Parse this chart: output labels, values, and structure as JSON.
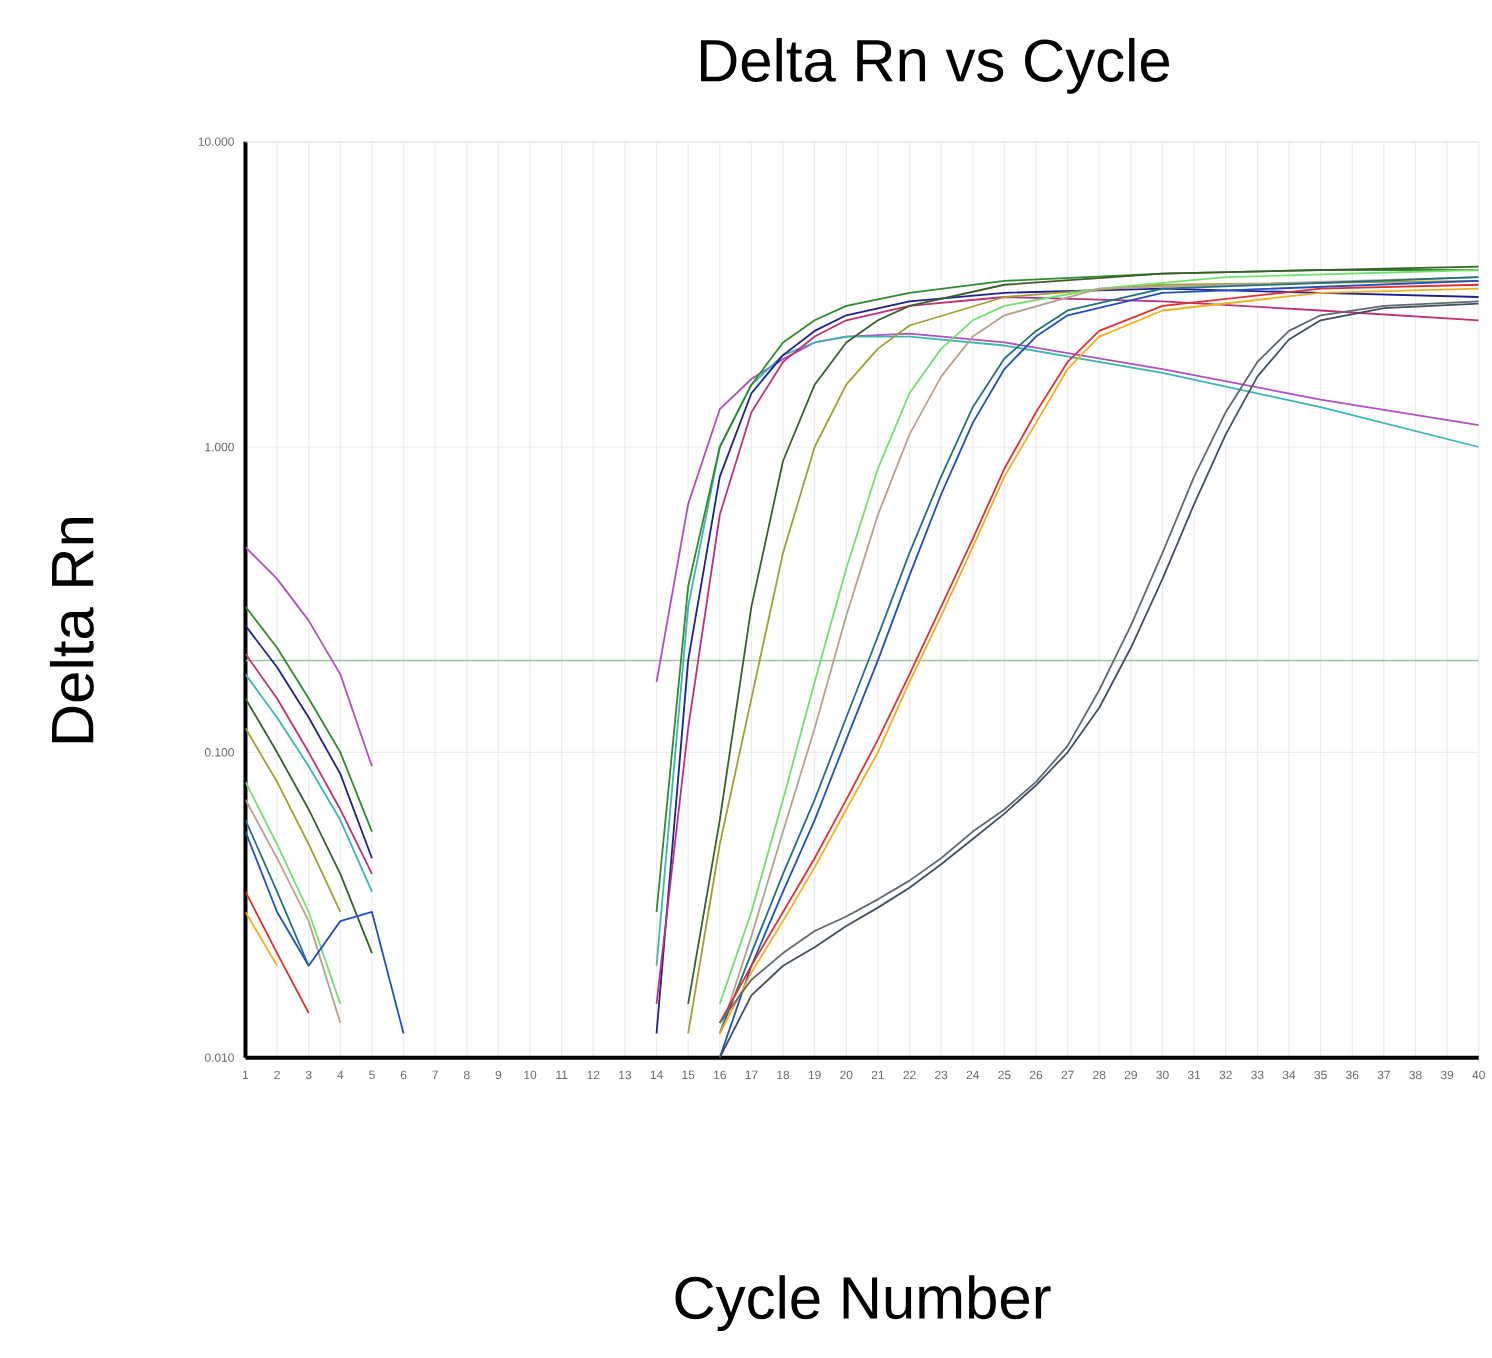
{
  "chart_data": {
    "type": "line",
    "title": "Delta Rn vs Cycle",
    "xlabel": "Cycle Number",
    "ylabel": "Delta Rn",
    "log": "y",
    "grid": true,
    "xlim": [
      1,
      40
    ],
    "xticks": [
      1,
      2,
      3,
      4,
      5,
      6,
      7,
      8,
      9,
      10,
      11,
      12,
      13,
      14,
      15,
      16,
      17,
      18,
      19,
      20,
      21,
      22,
      23,
      24,
      25,
      26,
      27,
      28,
      29,
      30,
      31,
      32,
      33,
      34,
      35,
      36,
      37,
      38,
      39,
      40
    ],
    "ylim": [
      0.01,
      10
    ],
    "yticks": [
      {
        "value": 0.01,
        "label": "0.010"
      },
      {
        "value": 0.1,
        "label": "0.100"
      },
      {
        "value": 1,
        "label": "1.000"
      },
      {
        "value": 10,
        "label": "10.000"
      }
    ],
    "ref_lines": [
      {
        "axis": "y",
        "value": 0.2,
        "color": "#9cc79c"
      }
    ],
    "series": [
      {
        "color": "#b04fc0",
        "x": [
          1,
          2,
          3,
          4,
          5,
          10,
          14,
          15,
          16,
          17,
          18,
          19,
          20,
          22,
          25,
          30,
          35,
          40
        ],
        "values": [
          0.47,
          0.37,
          0.27,
          0.18,
          0.09,
          null,
          0.17,
          0.65,
          1.33,
          1.67,
          1.94,
          2.2,
          2.3,
          2.35,
          2.2,
          1.8,
          1.43,
          1.18
        ]
      },
      {
        "color": "#3bb5b5",
        "x": [
          1,
          2,
          3,
          4,
          5,
          10,
          14,
          15,
          16,
          17,
          18,
          19,
          20,
          22,
          25,
          30,
          35,
          40
        ],
        "values": [
          0.18,
          0.13,
          0.09,
          0.06,
          0.035,
          null,
          0.02,
          0.3,
          1.0,
          1.6,
          2.0,
          2.2,
          2.3,
          2.3,
          2.15,
          1.75,
          1.35,
          1.0
        ]
      },
      {
        "color": "#2e8b2e",
        "x": [
          1,
          2,
          3,
          4,
          5,
          10,
          14,
          15,
          16,
          17,
          18,
          19,
          20,
          22,
          25,
          30,
          35,
          40
        ],
        "values": [
          0.3,
          0.22,
          0.15,
          0.1,
          0.055,
          null,
          0.03,
          0.35,
          1.0,
          1.6,
          2.2,
          2.6,
          2.9,
          3.2,
          3.5,
          3.7,
          3.8,
          3.8
        ]
      },
      {
        "color": "#1f1f8f",
        "x": [
          1,
          2,
          3,
          4,
          5,
          10,
          14,
          15,
          16,
          17,
          18,
          19,
          20,
          22,
          25,
          30,
          35,
          40
        ],
        "values": [
          0.26,
          0.19,
          0.13,
          0.085,
          0.045,
          null,
          0.012,
          0.2,
          0.8,
          1.5,
          2.0,
          2.4,
          2.7,
          3.0,
          3.2,
          3.3,
          3.2,
          3.1
        ]
      },
      {
        "color": "#c0307a",
        "x": [
          1,
          2,
          3,
          4,
          5,
          10,
          14,
          15,
          16,
          17,
          18,
          19,
          20,
          22,
          25,
          30,
          35,
          40
        ],
        "values": [
          0.21,
          0.15,
          0.1,
          0.065,
          0.04,
          null,
          0.015,
          0.12,
          0.6,
          1.3,
          1.9,
          2.3,
          2.6,
          2.9,
          3.1,
          3.0,
          2.8,
          2.6
        ]
      },
      {
        "color": "#3a5f2a",
        "x": [
          1,
          2,
          3,
          4,
          5,
          10,
          15,
          16,
          17,
          18,
          19,
          20,
          21,
          22,
          25,
          30,
          40
        ],
        "values": [
          0.15,
          0.1,
          0.065,
          0.04,
          0.022,
          null,
          0.015,
          0.06,
          0.3,
          0.9,
          1.6,
          2.2,
          2.6,
          2.9,
          3.4,
          3.7,
          3.9
        ]
      },
      {
        "color": "#a0a030",
        "x": [
          1,
          2,
          3,
          4,
          10,
          15,
          16,
          17,
          18,
          19,
          20,
          21,
          22,
          25,
          30,
          40
        ],
        "values": [
          0.12,
          0.08,
          0.05,
          0.03,
          null,
          0.012,
          0.05,
          0.15,
          0.45,
          1.0,
          1.6,
          2.1,
          2.5,
          3.1,
          3.4,
          3.5
        ]
      },
      {
        "color": "#70e070",
        "x": [
          1,
          2,
          3,
          4,
          10,
          16,
          17,
          18,
          19,
          20,
          21,
          22,
          23,
          24,
          25,
          28,
          32,
          40
        ],
        "values": [
          0.08,
          0.05,
          0.03,
          0.015,
          null,
          0.015,
          0.03,
          0.07,
          0.17,
          0.4,
          0.85,
          1.5,
          2.1,
          2.6,
          2.9,
          3.3,
          3.6,
          3.8
        ]
      },
      {
        "color": "#b8a090",
        "x": [
          1,
          2,
          3,
          4,
          10,
          16,
          17,
          18,
          19,
          20,
          21,
          22,
          23,
          24,
          25,
          28,
          40
        ],
        "values": [
          0.07,
          0.045,
          0.028,
          0.013,
          null,
          0.012,
          0.025,
          0.055,
          0.12,
          0.28,
          0.6,
          1.1,
          1.7,
          2.3,
          2.7,
          3.3,
          3.6
        ]
      },
      {
        "color": "#2050c0",
        "x": [
          1,
          2,
          3,
          4,
          5,
          6,
          10,
          16,
          17,
          18,
          19,
          20,
          21,
          22,
          23,
          24,
          25,
          26,
          27,
          30,
          40
        ],
        "values": [
          0.055,
          0.03,
          0.02,
          0.028,
          0.03,
          0.012,
          null,
          0.01,
          0.02,
          0.035,
          0.06,
          0.11,
          0.2,
          0.38,
          0.7,
          1.2,
          1.8,
          2.3,
          2.7,
          3.2,
          3.5
        ]
      },
      {
        "color": "#207080",
        "x": [
          1,
          2,
          3,
          10,
          16,
          17,
          18,
          19,
          20,
          21,
          22,
          23,
          24,
          25,
          26,
          27,
          30,
          40
        ],
        "values": [
          0.06,
          0.035,
          0.02,
          null,
          0.012,
          0.022,
          0.04,
          0.07,
          0.13,
          0.24,
          0.45,
          0.8,
          1.35,
          1.95,
          2.4,
          2.8,
          3.3,
          3.6
        ]
      },
      {
        "color": "#e03030",
        "x": [
          1,
          2,
          3,
          10,
          16,
          17,
          18,
          19,
          20,
          21,
          22,
          23,
          24,
          25,
          26,
          27,
          28,
          30,
          35,
          40
        ],
        "values": [
          0.035,
          0.022,
          0.014,
          null,
          0.013,
          0.02,
          0.03,
          0.045,
          0.07,
          0.11,
          0.18,
          0.3,
          0.5,
          0.85,
          1.3,
          1.9,
          2.4,
          2.9,
          3.3,
          3.4
        ]
      },
      {
        "color": "#f0b020",
        "x": [
          1,
          2,
          10,
          16,
          17,
          18,
          19,
          20,
          21,
          22,
          23,
          24,
          25,
          26,
          27,
          28,
          30,
          35,
          40
        ],
        "values": [
          0.03,
          0.02,
          null,
          0.012,
          0.019,
          0.028,
          0.042,
          0.065,
          0.1,
          0.17,
          0.28,
          0.47,
          0.8,
          1.2,
          1.8,
          2.3,
          2.8,
          3.2,
          3.3
        ]
      },
      {
        "color": "#606870",
        "x": [
          16,
          17,
          18,
          19,
          20,
          21,
          22,
          23,
          24,
          25,
          26,
          27,
          28,
          29,
          30,
          31,
          32,
          33,
          34,
          35,
          37,
          40
        ],
        "values": [
          0.013,
          0.018,
          0.022,
          0.026,
          0.029,
          0.033,
          0.038,
          0.045,
          0.055,
          0.065,
          0.08,
          0.105,
          0.16,
          0.26,
          0.45,
          0.8,
          1.3,
          1.9,
          2.4,
          2.7,
          2.9,
          3.0
        ]
      },
      {
        "color": "#405060",
        "x": [
          16,
          17,
          18,
          19,
          20,
          21,
          22,
          23,
          24,
          25,
          26,
          27,
          28,
          29,
          30,
          31,
          32,
          33,
          34,
          35,
          37,
          40
        ],
        "values": [
          0.01,
          0.016,
          0.02,
          0.023,
          0.027,
          0.031,
          0.036,
          0.043,
          0.052,
          0.063,
          0.078,
          0.1,
          0.14,
          0.22,
          0.37,
          0.65,
          1.1,
          1.7,
          2.25,
          2.6,
          2.85,
          2.95
        ]
      }
    ]
  }
}
